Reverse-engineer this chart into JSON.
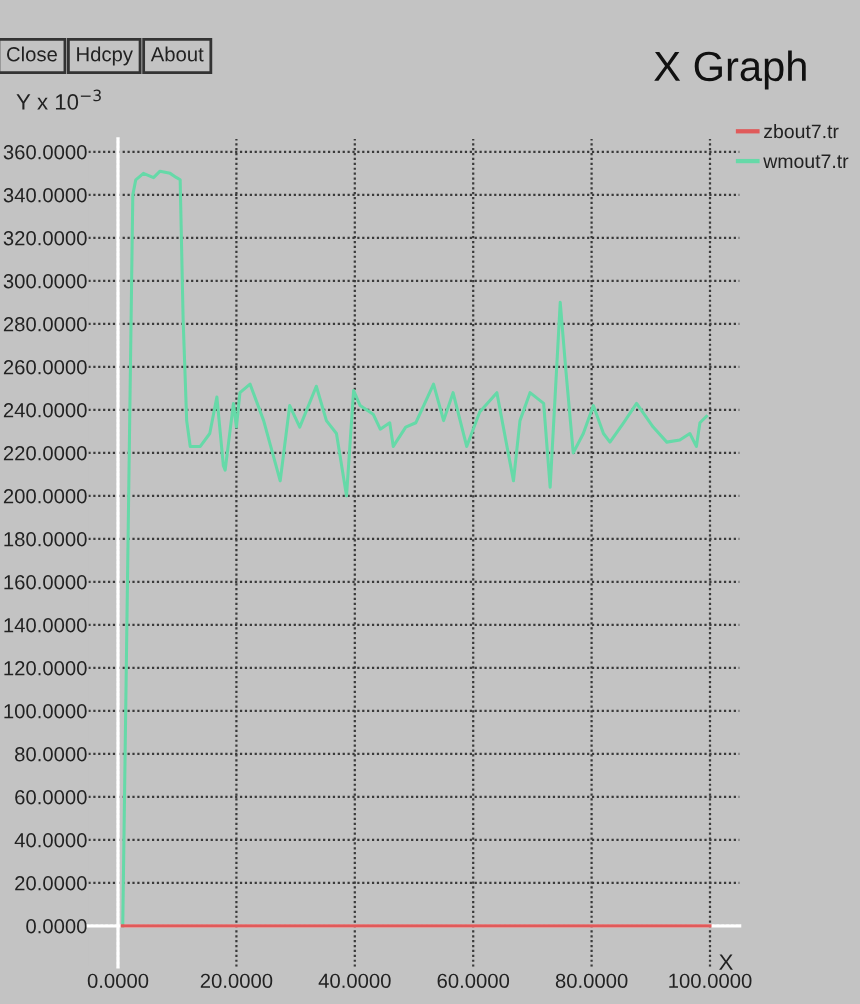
{
  "chart_data": {
    "type": "line",
    "title": "X Graph",
    "xlabel": "X",
    "ylabel": "Y x 10$^{−3}$",
    "annotations": [
      "Close",
      "Hdcpy",
      "About"
    ],
    "series": [
      {
        "name": "zbout7.tr",
        "color": "#e05a5a",
        "x": [
          0.7,
          100
        ],
        "values": [
          0,
          0
        ]
      },
      {
        "name": "wmout7.tr",
        "color": "#66d9a8",
        "x": [
          0.8,
          2.5,
          3,
          4.3,
          6,
          7.1,
          8.8,
          9.9,
          10.5,
          11,
          11.6,
          12.2,
          13.9,
          15.5,
          16.7,
          17.8,
          18.1,
          19.5,
          20,
          20.6,
          22.3,
          24.6,
          27.4,
          29,
          30.7,
          33.5,
          35.2,
          36.9,
          38.6,
          39.8,
          40.9,
          43.1,
          44.3,
          45.9,
          46.5,
          48.6,
          50.3,
          53.3,
          55,
          56.6,
          58.9,
          61.1,
          64,
          66.8,
          67.9,
          69.6,
          71.9,
          73,
          74.7,
          75.6,
          76.9,
          78.6,
          80.3,
          82,
          83.1,
          85.4,
          87.6,
          90.4,
          92.7,
          94.9,
          96.6,
          97.7,
          98.3,
          99.4
        ],
        "values": [
          0,
          340,
          347,
          350,
          348,
          351,
          350,
          348,
          347,
          282,
          235,
          223,
          223,
          229,
          246,
          214,
          212,
          243,
          232,
          248,
          252,
          235,
          207,
          242,
          232,
          251,
          235,
          229,
          200,
          249,
          242,
          238,
          231,
          234,
          223,
          232,
          234,
          252,
          235,
          248,
          223,
          239,
          248,
          207,
          235,
          248,
          243,
          204,
          290,
          260,
          220,
          229,
          242,
          229,
          225,
          234,
          243,
          232,
          225,
          226,
          229,
          223,
          234,
          237
        ]
      }
    ],
    "xlim": [
      -5,
      105
    ],
    "ylim": [
      -19,
      366
    ],
    "xticks": [
      {
        "value": 0,
        "label": "0.0000"
      },
      {
        "value": 20,
        "label": "20.0000"
      },
      {
        "value": 40,
        "label": "40.0000"
      },
      {
        "value": 60,
        "label": "60.0000"
      },
      {
        "value": 80,
        "label": "80.0000"
      },
      {
        "value": 100,
        "label": "100.0000"
      }
    ],
    "yticks": [
      {
        "value": 0,
        "label": "0.0000"
      },
      {
        "value": 20,
        "label": "20.0000"
      },
      {
        "value": 40,
        "label": "40.0000"
      },
      {
        "value": 60,
        "label": "60.0000"
      },
      {
        "value": 80,
        "label": "80.0000"
      },
      {
        "value": 100,
        "label": "100.0000"
      },
      {
        "value": 120,
        "label": "120.0000"
      },
      {
        "value": 140,
        "label": "140.0000"
      },
      {
        "value": 160,
        "label": "160.0000"
      },
      {
        "value": 180,
        "label": "180.0000"
      },
      {
        "value": 200,
        "label": "200.0000"
      },
      {
        "value": 220,
        "label": "220.0000"
      },
      {
        "value": 240,
        "label": "240.0000"
      },
      {
        "value": 260,
        "label": "260.0000"
      },
      {
        "value": 280,
        "label": "280.0000"
      },
      {
        "value": 300,
        "label": "300.0000"
      },
      {
        "value": 320,
        "label": "320.0000"
      },
      {
        "value": 340,
        "label": "340.0000"
      },
      {
        "value": 360,
        "label": "360.0000"
      }
    ],
    "grid": true,
    "legend": "top right",
    "line_style": "solid"
  }
}
